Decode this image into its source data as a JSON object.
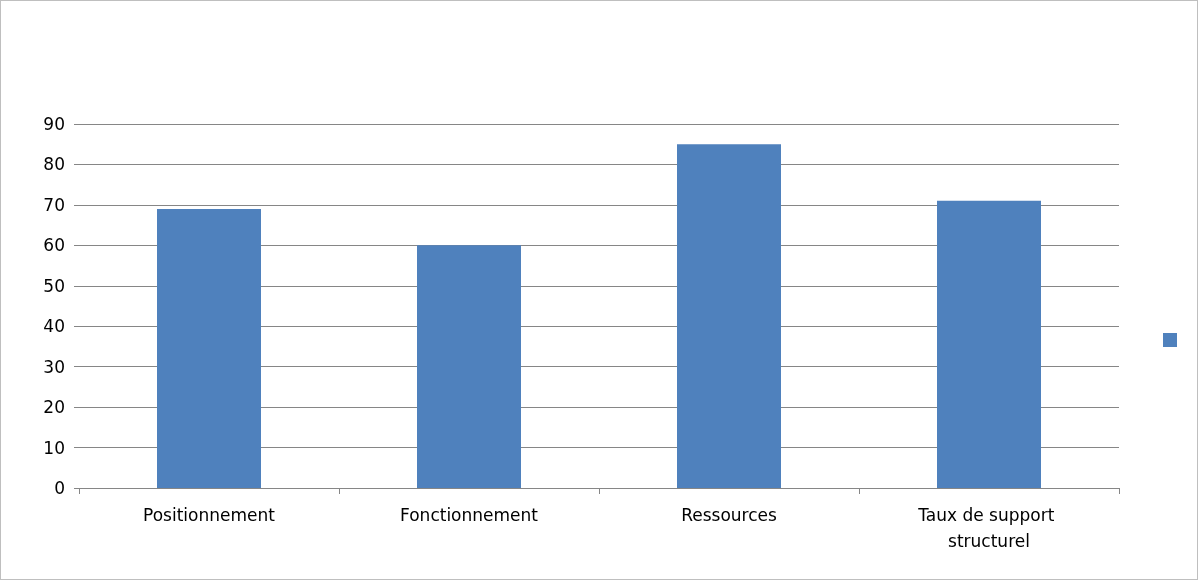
{
  "chart_data": {
    "type": "bar",
    "categories": [
      "Positionnement",
      "Fonctionnement",
      "Ressources",
      "Taux de support structurel"
    ],
    "series": [
      {
        "color": "#4f81bd",
        "values": [
          69,
          60,
          85,
          71
        ]
      }
    ],
    "ylim": [
      0,
      90
    ],
    "yticks": [
      0,
      10,
      20,
      30,
      40,
      50,
      60,
      70,
      80,
      90
    ],
    "grid": "y"
  }
}
